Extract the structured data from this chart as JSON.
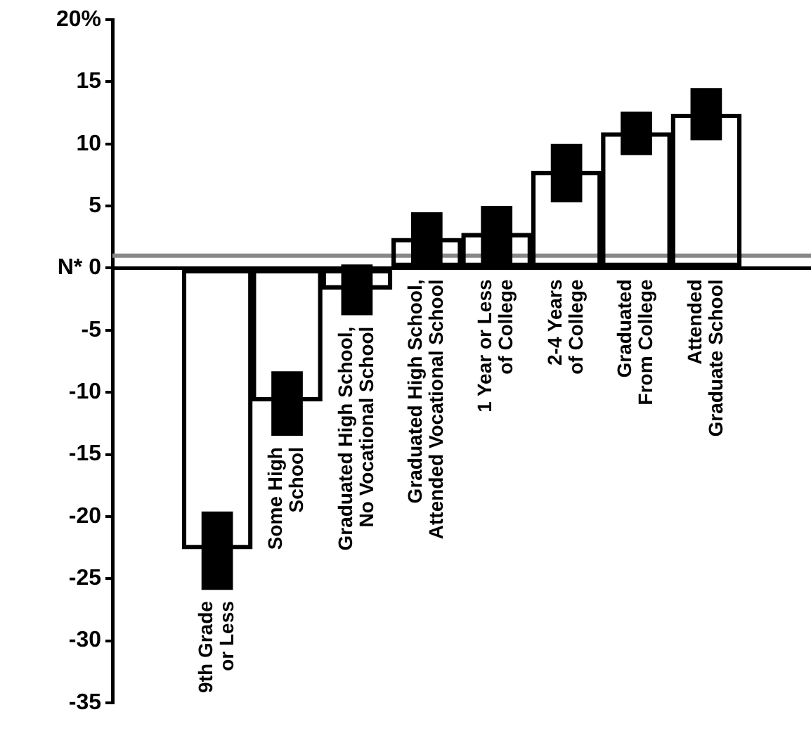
{
  "chart_data": {
    "type": "bar",
    "categories": [
      "9th Grade or Less",
      "Some High School",
      "Graduated High School, No Vocational School",
      "Graduated High School, Attended Vocational School",
      "1 Year or Less of College",
      "2-4 Years of College",
      "Graduated From College",
      "Attended Graduate School"
    ],
    "series": [
      {
        "color": "#000000",
        "values": [
          -22.6,
          -10.7,
          -1.7,
          2.4,
          2.8,
          7.8,
          10.9,
          12.4
        ]
      },
      {
        "color": "#000000",
        "base": [
          -25.9,
          -13.5,
          -3.8,
          0,
          0,
          5.3,
          9.1,
          10.3
        ],
        "values": [
          6.3,
          5.2,
          4.1,
          4.5,
          5.0,
          4.7,
          3.5,
          4.2
        ]
      }
    ],
    "ylim": [
      -35,
      20
    ],
    "yticks": [
      {
        "value": 20,
        "label": "20%"
      },
      15,
      10,
      5,
      {
        "value": 0,
        "label": "N* 0"
      },
      -5,
      -10,
      -15,
      -20,
      -25,
      -30,
      -35
    ],
    "ref_lines": [
      {
        "axis": "y",
        "value": 1,
        "color": "#888888"
      }
    ],
    "grid": false,
    "legend": false
  }
}
